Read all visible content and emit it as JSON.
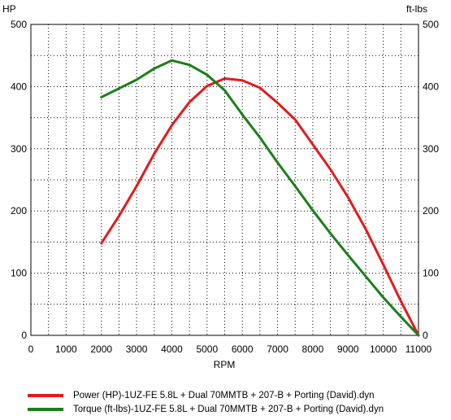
{
  "chart_data": {
    "type": "line",
    "xlabel": "RPM",
    "ylabel_left": "HP",
    "ylabel_right": "ft-lbs",
    "xlim": [
      0,
      11000
    ],
    "ylim_left": [
      0,
      500
    ],
    "ylim_right": [
      0,
      500
    ],
    "x_ticks": [
      "0",
      "1000",
      "2000",
      "3000",
      "4000",
      "5000",
      "6000",
      "7000",
      "8000",
      "9000",
      "10000",
      "11000"
    ],
    "y_ticks_left": [
      "0",
      "100",
      "200",
      "300",
      "400",
      "500"
    ],
    "y_ticks_right": [
      "0",
      "100",
      "200",
      "300",
      "400",
      "500"
    ],
    "grid": true,
    "legend_position": "bottom-left",
    "series": [
      {
        "name": "Power (HP)-1UZ-FE 5.8L + Dual 70MMTB + 207-B + Porting (David).dyn",
        "color": "#e31a1c",
        "axis": "left",
        "x": [
          2000,
          2500,
          3000,
          3500,
          4000,
          4500,
          5000,
          5500,
          6000,
          6500,
          7000,
          7500,
          8000,
          8500,
          9000,
          9500,
          10000,
          10500,
          11000
        ],
        "y": [
          148,
          192,
          240,
          292,
          338,
          375,
          401,
          413,
          410,
          398,
          374,
          347,
          307,
          267,
          222,
          171,
          114,
          55,
          0
        ]
      },
      {
        "name": "Torque (ft-lbs)-1UZ-FE 5.8L + Dual 70MMTB + 207-B + Porting (David).dyn",
        "color": "#1a7f1a",
        "axis": "right",
        "x": [
          2000,
          2500,
          3000,
          3500,
          4000,
          4500,
          5000,
          5500,
          6000,
          6500,
          7000,
          7500,
          8000,
          8500,
          9000,
          9500,
          10000,
          10500,
          11000
        ],
        "y": [
          383,
          397,
          411,
          429,
          442,
          435,
          419,
          394,
          355,
          318,
          278,
          240,
          201,
          164,
          129,
          95,
          61,
          30,
          0
        ]
      }
    ]
  }
}
